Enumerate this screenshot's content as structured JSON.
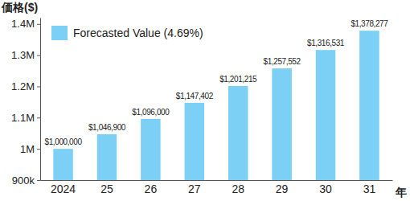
{
  "chart_data": {
    "type": "bar",
    "y_label": "価格($)",
    "x_label": "年",
    "categories": [
      "2024",
      "25",
      "26",
      "27",
      "28",
      "29",
      "30",
      "31"
    ],
    "series": [
      {
        "name": "Forecasted Value (4.69%)",
        "color": "#7ccff5",
        "values": [
          1000000,
          1046900,
          1096000,
          1147402,
          1201215,
          1257552,
          1316531,
          1378277
        ],
        "value_labels": [
          "$1,000,000",
          "$1,046,900",
          "$1,096,000",
          "$1,147,402",
          "$1,201,215",
          "$1,257,552",
          "$1,316,531",
          "$1,378,277"
        ]
      }
    ],
    "ylim": [
      900000,
      1420000
    ],
    "yticks": [
      {
        "value": 900000,
        "label": "900k"
      },
      {
        "value": 1000000,
        "label": "1M"
      },
      {
        "value": 1100000,
        "label": "1.1M"
      },
      {
        "value": 1200000,
        "label": "1.2M"
      },
      {
        "value": 1300000,
        "label": "1.3M"
      },
      {
        "value": 1400000,
        "label": "1.4M"
      }
    ],
    "data_labels": true,
    "legend": "top-left",
    "grid": false
  }
}
